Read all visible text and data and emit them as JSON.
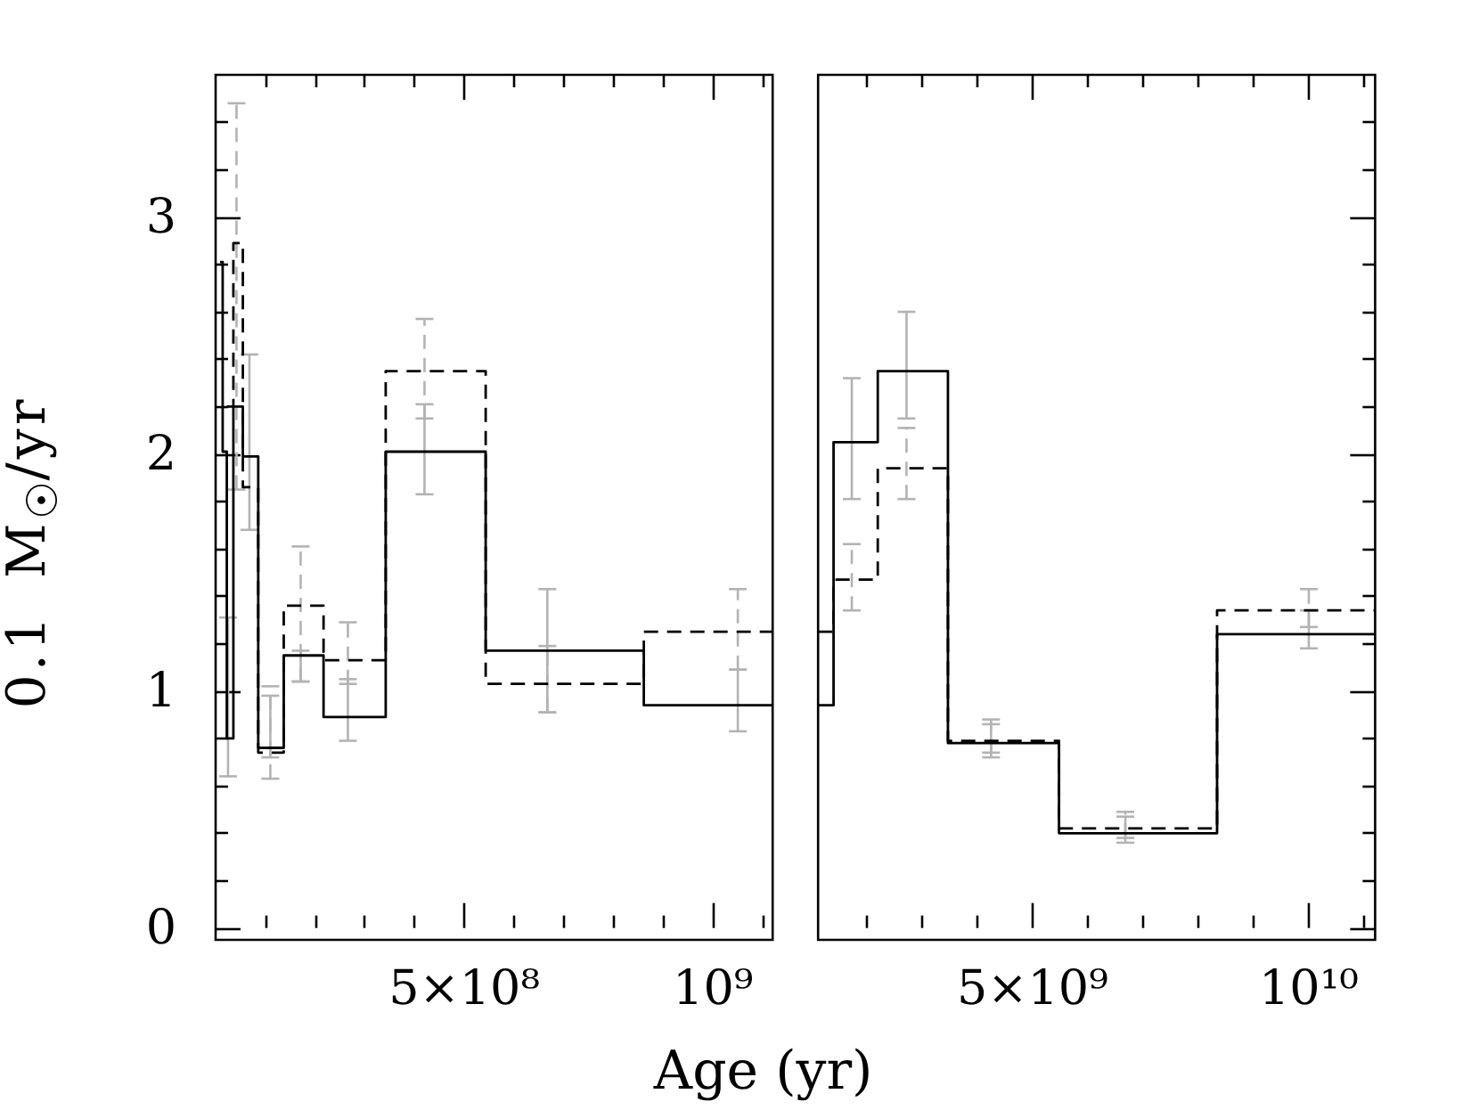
{
  "chart_data": [
    {
      "type": "step",
      "marker": "none",
      "xlabel": "Age (yr)",
      "ylabel": "0.1 M$_{☉}$/yr",
      "series": [
        {
          "x": [
            9000000,
            14200000,
            22500000,
            25000000,
            35700000,
            54800000,
            68000000,
            85700000,
            110000000,
            137000000,
            171000000,
            217000000,
            266000000,
            342000000,
            420000000,
            543000000,
            667000000,
            861000000,
            1050000000,
            1120000000
          ],
          "values": [
            2.81,
            2.01,
            0.8,
            0.8,
            2.2,
            1.99,
            1.99,
            0.76,
            0.76,
            1.15,
            1.15,
            0.89,
            0.89,
            2.01,
            2.01,
            1.17,
            1.17,
            0.94,
            0.94,
            0.94
          ],
          "errors": [
            null,
            null,
            null,
            [
              0.64,
              1.31
            ],
            null,
            null,
            [
              1.68,
              2.42
            ],
            null,
            [
              0.72,
              0.98
            ],
            null,
            [
              1.04,
              1.17
            ],
            null,
            [
              0.79,
              1.05
            ],
            null,
            [
              1.83,
              2.21
            ],
            null,
            [
              0.91,
              1.43
            ],
            null,
            [
              0.83,
              1.09
            ],
            null
          ],
          "color": "#000000",
          "line_style": "solid"
        },
        {
          "x": [
            22500000,
            35700000,
            42000000,
            54800000,
            85700000,
            110000000,
            137000000,
            171000000,
            217000000,
            266000000,
            342000000,
            420000000,
            543000000,
            667000000,
            861000000,
            1050000000,
            1120000000
          ],
          "values": [
            2.2,
            2.89,
            2.89,
            1.86,
            0.74,
            0.74,
            1.36,
            1.36,
            1.13,
            1.13,
            2.35,
            2.35,
            1.03,
            1.03,
            1.25,
            1.25,
            1.25
          ],
          "errors": [
            null,
            null,
            [
              1.85,
              3.48
            ],
            null,
            null,
            [
              0.63,
              1.02
            ],
            null,
            [
              1.04,
              1.61
            ],
            null,
            [
              1.03,
              1.29
            ],
            null,
            [
              2.15,
              2.57
            ],
            null,
            [
              0.91,
              1.19
            ],
            null,
            [
              1.09,
              1.43
            ],
            null
          ],
          "color": "#000000",
          "line_style": "dashed"
        }
      ],
      "xlim": [
        0,
        1120000000
      ],
      "xticks": [
        {
          "value": 100000000,
          "label": null
        },
        {
          "value": 200000000,
          "label": null
        },
        {
          "value": 300000000,
          "label": null
        },
        {
          "value": 400000000,
          "label": null
        },
        {
          "value": 500000000,
          "label": "5×10⁸"
        },
        {
          "value": 600000000,
          "label": null
        },
        {
          "value": 700000000,
          "label": null
        },
        {
          "value": 800000000,
          "label": null
        },
        {
          "value": 900000000,
          "label": null
        },
        {
          "value": 1000000000,
          "label": "10⁹"
        },
        {
          "value": 1100000000,
          "label": null
        }
      ],
      "ylim": [
        -0.05,
        3.6
      ],
      "yticks": [
        0,
        {
          "value": 0.2,
          "label": null
        },
        {
          "value": 0.4,
          "label": null
        },
        {
          "value": 0.6,
          "label": null
        },
        {
          "value": 0.8,
          "label": null
        },
        1,
        {
          "value": 1.2,
          "label": null
        },
        {
          "value": 1.4,
          "label": null
        },
        {
          "value": 1.6,
          "label": null
        },
        {
          "value": 1.8,
          "label": null
        },
        2,
        {
          "value": 2.2,
          "label": null
        },
        {
          "value": 2.4,
          "label": null
        },
        {
          "value": 2.6,
          "label": null
        },
        {
          "value": 2.8,
          "label": null
        },
        3,
        {
          "value": 3.2,
          "label": null
        },
        {
          "value": 3.4,
          "label": null
        }
      ]
    },
    {
      "type": "step",
      "marker": "none",
      "tick_labels": "x",
      "series": [
        {
          "x": [
            1120000000,
            1400000000,
            1730000000,
            2200000000,
            2720000000,
            3470000000,
            4250000000,
            5480000000,
            6680000000,
            8340000000,
            10000000000,
            11200000000
          ],
          "values": [
            0.94,
            2.05,
            2.05,
            2.35,
            2.35,
            0.78,
            0.78,
            0.4,
            0.4,
            1.24,
            1.24,
            1.24
          ],
          "errors": [
            null,
            null,
            [
              1.81,
              2.32
            ],
            null,
            [
              2.15,
              2.6
            ],
            null,
            [
              0.72,
              0.86
            ],
            null,
            [
              0.36,
              0.47
            ],
            null,
            [
              1.18,
              1.34
            ],
            null
          ],
          "color": "#000000",
          "line_style": "solid"
        },
        {
          "x": [
            1120000000,
            1400000000,
            1730000000,
            2200000000,
            2720000000,
            3470000000,
            4250000000,
            5480000000,
            6680000000,
            8340000000,
            10000000000,
            11200000000
          ],
          "values": [
            1.25,
            1.47,
            1.47,
            1.94,
            1.94,
            0.79,
            0.79,
            0.42,
            0.42,
            1.34,
            1.34,
            1.34
          ],
          "errors": [
            null,
            null,
            [
              1.34,
              1.62
            ],
            null,
            [
              1.81,
              2.11
            ],
            null,
            [
              0.74,
              0.88
            ],
            null,
            [
              0.38,
              0.49
            ],
            null,
            [
              1.27,
              1.43
            ],
            null
          ],
          "color": "#000000",
          "line_style": "dashed"
        }
      ],
      "xlim": [
        1120000000,
        11200000000
      ],
      "xticks": [
        {
          "value": 2000000000,
          "label": null
        },
        {
          "value": 3000000000,
          "label": null
        },
        {
          "value": 4000000000,
          "label": null
        },
        {
          "value": 5000000000,
          "label": "5×10⁹"
        },
        {
          "value": 6000000000,
          "label": null
        },
        {
          "value": 7000000000,
          "label": null
        },
        {
          "value": 8000000000,
          "label": null
        },
        {
          "value": 9000000000,
          "label": null
        },
        {
          "value": 10000000000,
          "label": "10¹⁰"
        },
        {
          "value": 11000000000,
          "label": null
        }
      ],
      "ylim": [
        -0.05,
        3.6
      ],
      "yticks": [
        0,
        {
          "value": 0.2,
          "label": null
        },
        {
          "value": 0.4,
          "label": null
        },
        {
          "value": 0.6,
          "label": null
        },
        {
          "value": 0.8,
          "label": null
        },
        1,
        {
          "value": 1.2,
          "label": null
        },
        {
          "value": 1.4,
          "label": null
        },
        {
          "value": 1.6,
          "label": null
        },
        {
          "value": 1.8,
          "label": null
        },
        2,
        {
          "value": 2.2,
          "label": null
        },
        {
          "value": 2.4,
          "label": null
        },
        {
          "value": 2.6,
          "label": null
        },
        {
          "value": 2.8,
          "label": null
        },
        3,
        {
          "value": 3.2,
          "label": null
        },
        {
          "value": 3.4,
          "label": null
        }
      ]
    }
  ]
}
